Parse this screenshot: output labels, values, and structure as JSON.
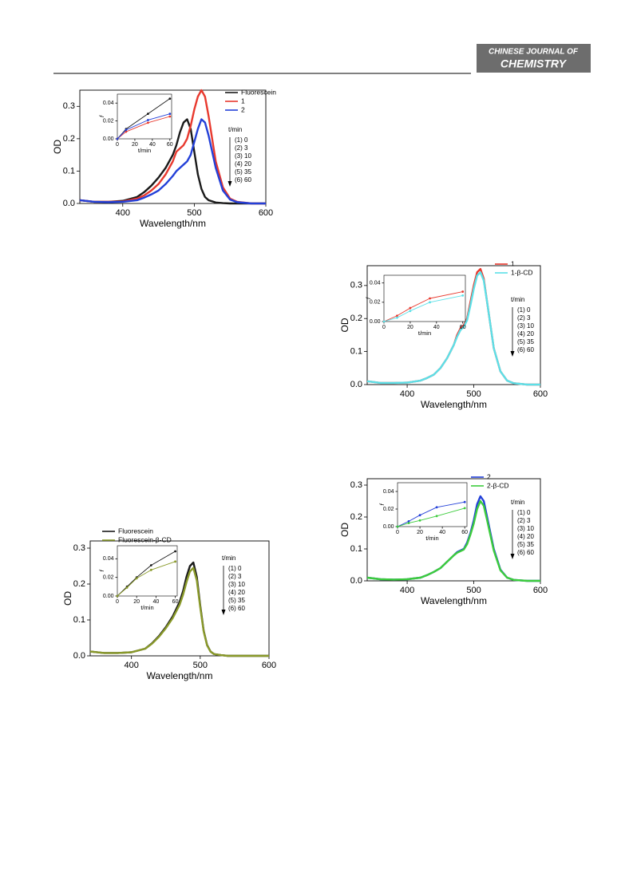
{
  "header": {
    "journal_line1": "CHINESE JOURNAL OF",
    "journal_line2": "CHEMISTRY"
  },
  "chart_data": [
    {
      "type": "line",
      "xlabel": "Wavelength/nm",
      "ylabel": "OD",
      "xlim": [
        340,
        600
      ],
      "ylim": [
        0,
        0.35
      ],
      "xticks": [
        400,
        500,
        600
      ],
      "yticks": [
        {
          "value": 0,
          "label": "0.0"
        },
        0.1,
        0.2,
        0.3
      ],
      "x": [
        340,
        360,
        380,
        400,
        420,
        430,
        440,
        450,
        460,
        470,
        475,
        480,
        485,
        490,
        495,
        500,
        505,
        510,
        515,
        520,
        530,
        540,
        550,
        560,
        580,
        600
      ],
      "series": [
        {
          "name": "Fluorescein",
          "color": "#1a1a1a",
          "values": [
            0.01,
            0.005,
            0.005,
            0.008,
            0.02,
            0.035,
            0.055,
            0.08,
            0.11,
            0.15,
            0.18,
            0.22,
            0.25,
            0.26,
            0.23,
            0.16,
            0.09,
            0.045,
            0.02,
            0.01,
            0.003,
            0.001,
            0,
            0,
            0,
            0
          ]
        },
        {
          "name": "1",
          "color": "#e8392e",
          "values": [
            0.01,
            0.005,
            0.005,
            0.006,
            0.015,
            0.025,
            0.04,
            0.06,
            0.09,
            0.13,
            0.16,
            0.17,
            0.18,
            0.2,
            0.24,
            0.29,
            0.33,
            0.35,
            0.33,
            0.27,
            0.13,
            0.05,
            0.015,
            0.005,
            0,
            0
          ]
        },
        {
          "name": "2",
          "color": "#2340d8",
          "values": [
            0.01,
            0.005,
            0.004,
            0.005,
            0.01,
            0.018,
            0.028,
            0.04,
            0.06,
            0.085,
            0.1,
            0.11,
            0.12,
            0.13,
            0.15,
            0.19,
            0.23,
            0.26,
            0.25,
            0.21,
            0.11,
            0.04,
            0.012,
            0.004,
            0,
            0
          ]
        }
      ],
      "annotation": {
        "title": "t/min",
        "items": [
          "(1) 0",
          "(2) 3",
          "(3) 10",
          "(4) 20",
          "(5) 35",
          "(6) 60"
        ]
      }
    },
    {
      "type": "line",
      "xlabel": "t/min",
      "ylabel": "f",
      "xlim": [
        0,
        62
      ],
      "ylim": [
        0,
        0.05
      ],
      "xticks": [
        0,
        20,
        40,
        60
      ],
      "yticks": [
        {
          "value": 0,
          "label": "0.00"
        },
        0.02,
        0.04
      ],
      "x": [
        0,
        10,
        35,
        60
      ],
      "series": [
        {
          "color": "#1a1a1a",
          "values": [
            0,
            0.011,
            0.028,
            0.045
          ]
        },
        {
          "color": "#e8392e",
          "values": [
            0,
            0.008,
            0.018,
            0.025
          ]
        },
        {
          "color": "#2340d8",
          "values": [
            0,
            0.01,
            0.021,
            0.028
          ]
        }
      ]
    },
    {
      "type": "line",
      "xlabel": "Wavelength/nm",
      "ylabel": "OD",
      "xlim": [
        340,
        600
      ],
      "ylim": [
        0,
        0.36
      ],
      "xticks": [
        400,
        500,
        600
      ],
      "yticks": [
        {
          "value": 0,
          "label": "0.0"
        },
        0.1,
        0.2,
        0.3
      ],
      "x": [
        340,
        360,
        380,
        400,
        420,
        430,
        440,
        450,
        460,
        470,
        475,
        480,
        485,
        490,
        495,
        500,
        505,
        510,
        515,
        520,
        530,
        540,
        550,
        560,
        580,
        600
      ],
      "series": [
        {
          "name": "1",
          "color": "#e8392e",
          "values": [
            0.01,
            0.005,
            0.005,
            0.006,
            0.012,
            0.02,
            0.03,
            0.05,
            0.08,
            0.12,
            0.15,
            0.17,
            0.18,
            0.2,
            0.25,
            0.3,
            0.34,
            0.35,
            0.32,
            0.25,
            0.11,
            0.04,
            0.012,
            0.004,
            0,
            0
          ]
        },
        {
          "name": "1-β-CD",
          "color": "#5ce0e8",
          "values": [
            0.01,
            0.005,
            0.005,
            0.006,
            0.012,
            0.02,
            0.03,
            0.05,
            0.08,
            0.12,
            0.145,
            0.165,
            0.175,
            0.195,
            0.24,
            0.29,
            0.33,
            0.34,
            0.315,
            0.25,
            0.11,
            0.04,
            0.012,
            0.004,
            0,
            0
          ]
        }
      ],
      "annotation": {
        "title": "t/min",
        "items": [
          "(1) 0",
          "(2) 3",
          "(3) 10",
          "(4) 20",
          "(5) 35",
          "(6) 60"
        ]
      }
    },
    {
      "type": "line",
      "xlabel": "t/min",
      "ylabel": "f",
      "xlim": [
        0,
        62
      ],
      "ylim": [
        0,
        0.048
      ],
      "xticks": [
        0,
        20,
        40,
        60
      ],
      "yticks": [
        {
          "value": 0,
          "label": "0.00"
        },
        0.02,
        0.04
      ],
      "x": [
        0,
        10,
        20,
        35,
        60
      ],
      "series": [
        {
          "color": "#e8392e",
          "values": [
            0,
            0.006,
            0.014,
            0.024,
            0.031
          ]
        },
        {
          "color": "#5ce0e8",
          "values": [
            0,
            0.004,
            0.011,
            0.02,
            0.027
          ]
        }
      ]
    },
    {
      "type": "line",
      "xlabel": "Wavelength/nm",
      "ylabel": "OD",
      "xlim": [
        340,
        600
      ],
      "ylim": [
        0,
        0.32
      ],
      "xticks": [
        400,
        500,
        600
      ],
      "yticks": [
        {
          "value": 0,
          "label": "0.0"
        },
        0.1,
        0.2,
        0.3
      ],
      "x": [
        340,
        360,
        380,
        400,
        420,
        430,
        440,
        450,
        460,
        470,
        475,
        480,
        485,
        490,
        495,
        500,
        505,
        510,
        515,
        520,
        530,
        540,
        550,
        560,
        580,
        600
      ],
      "series": [
        {
          "name": "2",
          "color": "#2340d8",
          "values": [
            0.01,
            0.005,
            0.004,
            0.005,
            0.01,
            0.018,
            0.028,
            0.04,
            0.06,
            0.08,
            0.09,
            0.095,
            0.1,
            0.12,
            0.15,
            0.19,
            0.24,
            0.265,
            0.25,
            0.2,
            0.1,
            0.035,
            0.01,
            0.003,
            0,
            0
          ]
        },
        {
          "name": "2-β-CD",
          "color": "#3ccc3c",
          "values": [
            0.01,
            0.005,
            0.004,
            0.005,
            0.01,
            0.018,
            0.028,
            0.04,
            0.06,
            0.08,
            0.088,
            0.093,
            0.098,
            0.115,
            0.145,
            0.18,
            0.225,
            0.25,
            0.235,
            0.19,
            0.095,
            0.033,
            0.01,
            0.003,
            0,
            0
          ]
        }
      ],
      "annotation": {
        "title": "t/min",
        "items": [
          "(1) 0",
          "(2) 3",
          "(3) 10",
          "(4) 20",
          "(5) 35",
          "(6) 60"
        ]
      }
    },
    {
      "type": "line",
      "xlabel": "t/min",
      "ylabel": "f",
      "xlim": [
        0,
        62
      ],
      "ylim": [
        0,
        0.05
      ],
      "xticks": [
        0,
        20,
        40,
        60
      ],
      "yticks": [
        {
          "value": 0,
          "label": "0.00"
        },
        0.02,
        0.04
      ],
      "x": [
        0,
        10,
        20,
        35,
        60
      ],
      "series": [
        {
          "color": "#2340d8",
          "values": [
            0,
            0.006,
            0.013,
            0.022,
            0.028
          ]
        },
        {
          "color": "#3ccc3c",
          "values": [
            0,
            0.004,
            0.007,
            0.012,
            0.021
          ]
        }
      ]
    },
    {
      "type": "line",
      "xlabel": "Wavelength/nm",
      "ylabel": "OD",
      "xlim": [
        340,
        600
      ],
      "ylim": [
        0,
        0.32
      ],
      "xticks": [
        400,
        500,
        600
      ],
      "yticks": [
        {
          "value": 0,
          "label": "0.0"
        },
        0.1,
        0.2,
        0.3
      ],
      "x": [
        340,
        360,
        380,
        400,
        420,
        430,
        440,
        450,
        460,
        470,
        475,
        480,
        485,
        490,
        495,
        500,
        505,
        510,
        515,
        520,
        530,
        540,
        550,
        560,
        580,
        600
      ],
      "series": [
        {
          "name": "Fluorescein",
          "color": "#1a1a1a",
          "values": [
            0.012,
            0.008,
            0.008,
            0.01,
            0.02,
            0.035,
            0.055,
            0.08,
            0.11,
            0.15,
            0.18,
            0.22,
            0.25,
            0.26,
            0.22,
            0.14,
            0.07,
            0.03,
            0.012,
            0.005,
            0.002,
            0,
            0,
            0,
            0,
            0
          ]
        },
        {
          "name": "Fluorescein-β-CD",
          "color": "#8a9a2a",
          "values": [
            0.012,
            0.008,
            0.008,
            0.01,
            0.02,
            0.034,
            0.053,
            0.077,
            0.105,
            0.142,
            0.17,
            0.205,
            0.235,
            0.245,
            0.21,
            0.135,
            0.068,
            0.029,
            0.012,
            0.005,
            0.002,
            0,
            0,
            0,
            0,
            0
          ]
        }
      ],
      "annotation": {
        "title": "t/min",
        "items": [
          "(1) 0",
          "(2) 3",
          "(3) 10",
          "(4) 20",
          "(5) 35",
          "(6) 60"
        ]
      }
    },
    {
      "type": "line",
      "xlabel": "t/min",
      "ylabel": "f",
      "xlim": [
        0,
        62
      ],
      "ylim": [
        0,
        0.054
      ],
      "xticks": [
        0,
        20,
        40,
        60
      ],
      "yticks": [
        {
          "value": 0,
          "label": "0.00"
        },
        0.02,
        0.04
      ],
      "x": [
        0,
        10,
        20,
        35,
        60
      ],
      "series": [
        {
          "color": "#1a1a1a",
          "values": [
            0,
            0.01,
            0.02,
            0.033,
            0.048
          ]
        },
        {
          "color": "#8a9a2a",
          "values": [
            0,
            0.009,
            0.019,
            0.028,
            0.037
          ]
        }
      ]
    }
  ]
}
